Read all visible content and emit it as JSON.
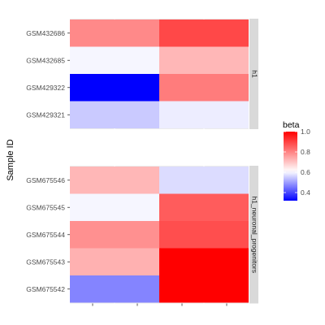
{
  "chart_data": {
    "type": "heatmap",
    "ylabel": "Sample ID",
    "xlabel": "",
    "legend": {
      "title": "beta",
      "position": "right",
      "ticks": [
        0.4,
        0.6,
        0.8,
        1.0
      ],
      "tick_labels": [
        "0.4",
        "0.6",
        "0.8",
        "1.0"
      ],
      "range": [
        0.32,
        1.0
      ]
    },
    "colors": {
      "low": "#0000ff",
      "mid": "#ffffff",
      "high": "#ff0000",
      "midpoint": 0.61,
      "panel_bg": "#ebebeb",
      "strip_bg": "#d9d9d9"
    },
    "columns": 2,
    "panels": [
      {
        "name": "h1",
        "rows": [
          {
            "id": "GSM432686",
            "values": [
              0.79,
              0.89
            ]
          },
          {
            "id": "GSM432685",
            "values": [
              0.6,
              0.72
            ]
          },
          {
            "id": "GSM429322",
            "values": [
              0.32,
              0.81
            ]
          },
          {
            "id": "GSM429321",
            "values": [
              0.55,
              0.59
            ]
          }
        ]
      },
      {
        "name": "h1_neuronal_progenitors",
        "rows": [
          {
            "id": "GSM675546",
            "values": [
              0.72,
              0.57
            ]
          },
          {
            "id": "GSM675545",
            "values": [
              0.6,
              0.86
            ]
          },
          {
            "id": "GSM675544",
            "values": [
              0.78,
              0.88
            ]
          },
          {
            "id": "GSM675543",
            "values": [
              0.73,
              1.0
            ]
          },
          {
            "id": "GSM675542",
            "values": [
              0.47,
              1.0
            ]
          }
        ]
      }
    ]
  }
}
